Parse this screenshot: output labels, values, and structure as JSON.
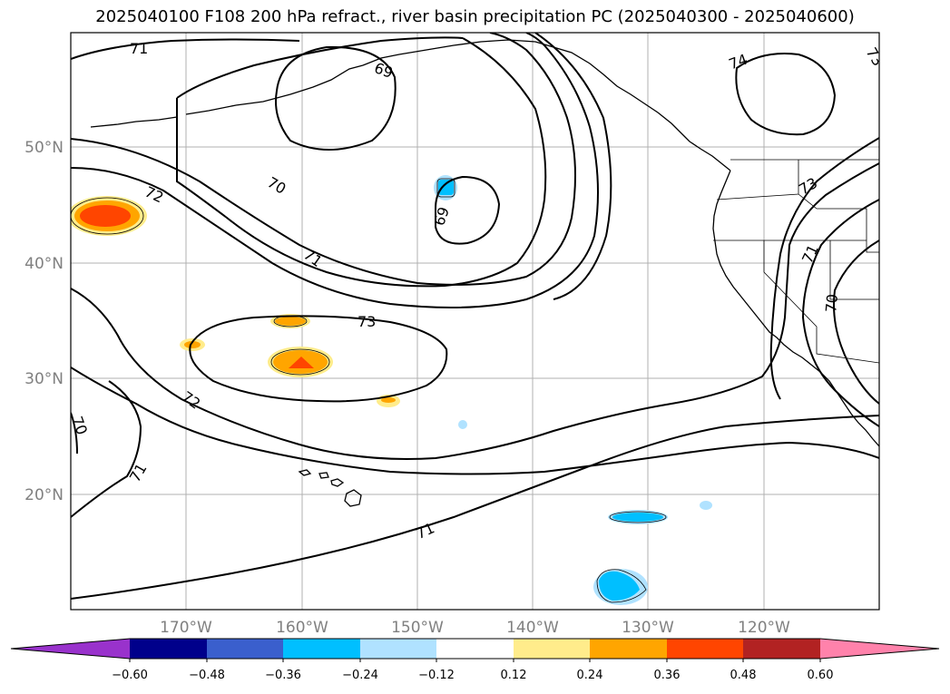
{
  "title": "2025040100 F108 200 hPa refract., river basin precipitation PC (2025040300 - 2025040600)",
  "map": {
    "lat_labels": [
      "50°N",
      "40°N",
      "30°N",
      "20°N"
    ],
    "lon_labels": [
      "170°W",
      "160°W",
      "150°W",
      "140°W",
      "130°W",
      "120°W"
    ],
    "contour_labels": [
      "71",
      "69",
      "74",
      "73",
      "72",
      "70",
      "71",
      "69",
      "73",
      "71",
      "70",
      "73",
      "72",
      "70",
      "71",
      "71"
    ]
  },
  "colorbar": {
    "tick_labels": [
      "−0.60",
      "−0.48",
      "−0.36",
      "−0.24",
      "−0.12",
      "0.12",
      "0.24",
      "0.36",
      "0.48",
      "0.60"
    ],
    "colors": [
      "#9932cc",
      "#00008b",
      "#3a5fcd",
      "#00bfff",
      "#b0e2ff",
      "#ffffff",
      "#ffec8b",
      "#ffa500",
      "#ff4500",
      "#b22222",
      "#ff82ab"
    ]
  }
}
